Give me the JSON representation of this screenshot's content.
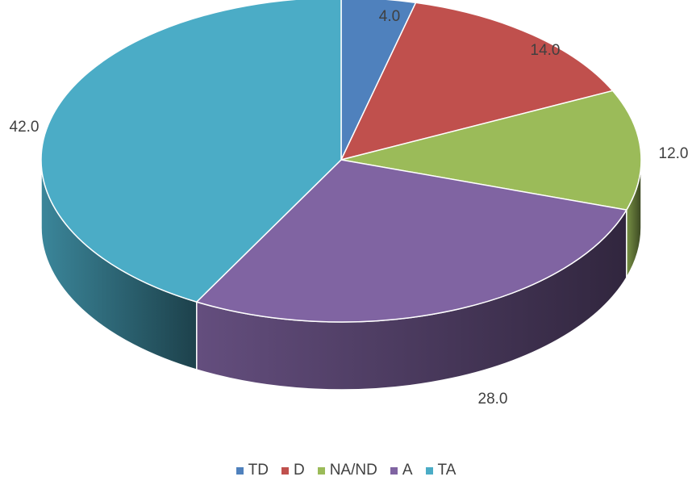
{
  "chart_data": {
    "type": "pie",
    "style": "3d",
    "categories": [
      "TD",
      "D",
      "NA/ND",
      "A",
      "TA"
    ],
    "values": [
      4.0,
      14.0,
      12.0,
      28.0,
      42.0
    ],
    "data_labels": [
      "4.0",
      "14.0",
      "12.0",
      "28.0",
      "42.0"
    ],
    "colors": [
      "#4F81BD",
      "#C0504D",
      "#9BBB59",
      "#8064A2",
      "#4BACC6"
    ],
    "legend_position": "bottom",
    "title": ""
  }
}
